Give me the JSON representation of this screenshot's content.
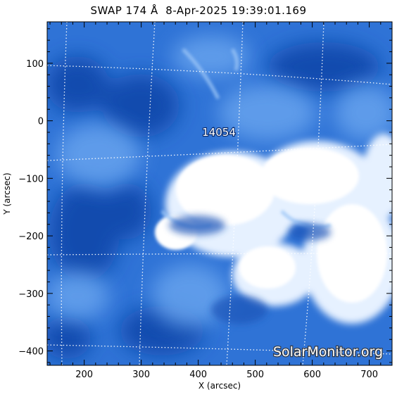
{
  "title": "SWAP 174 Å  8-Apr-2025 19:39:01.169",
  "x_axis": {
    "label": "X (arcsec)",
    "range": [
      135,
      740
    ],
    "major_ticks": [
      200,
      300,
      400,
      500,
      600,
      700
    ],
    "minor_step": 20
  },
  "y_axis": {
    "label": "Y (arcsec)",
    "range": [
      -425,
      172
    ],
    "major_ticks": [
      100,
      0,
      -100,
      -200,
      -300,
      -400
    ],
    "tick_labels": [
      "100",
      "0",
      "−100",
      "−200",
      "−300",
      "−400"
    ],
    "minor_step": 20
  },
  "active_region": {
    "label": "14054",
    "x": 452,
    "y": -10
  },
  "watermark": "SolarMonitor.org",
  "colors": {
    "coronal_bright": "#ffffff",
    "coronal_mid": "#4d8ee6",
    "coronal_dark": "#0d44a8",
    "grid": "#ffffff"
  }
}
